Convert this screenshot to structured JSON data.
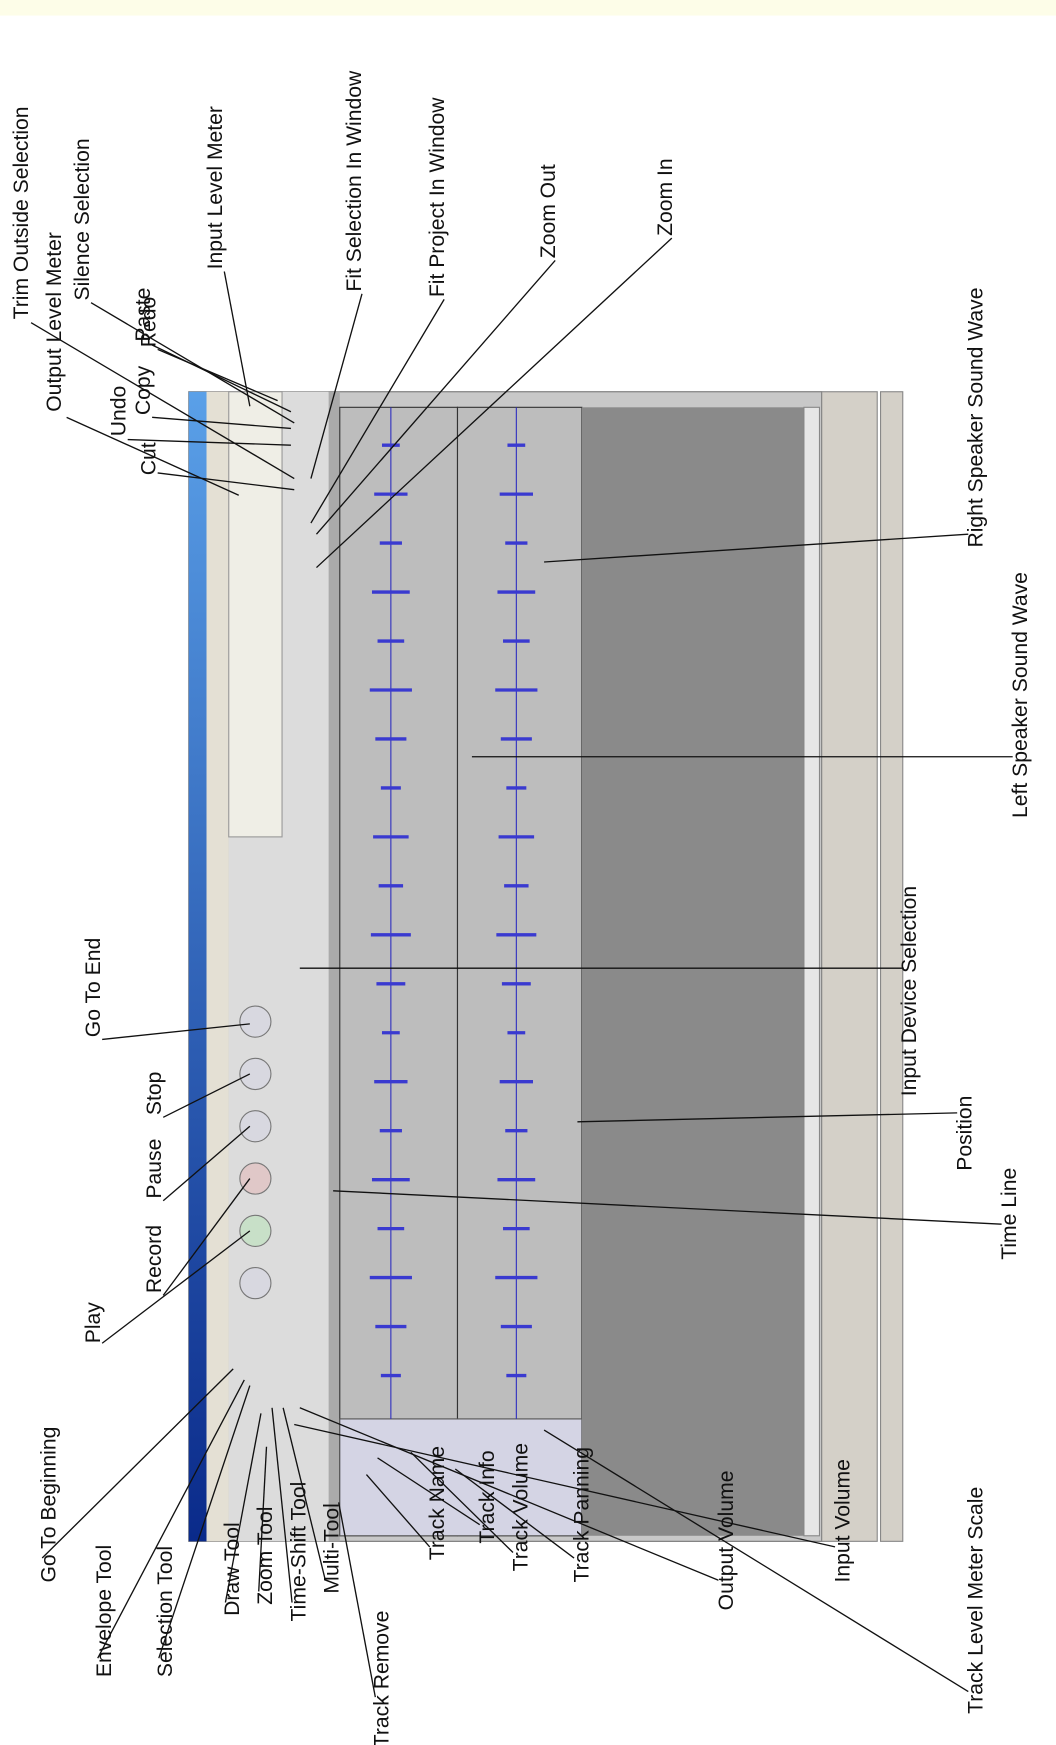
{
  "labels": [
    "Output Level Meter",
    "Cut",
    "Copy",
    "Paste",
    "Trim Outside Selection",
    "Silence Selection",
    "Undo",
    "Redo",
    "Input Level Meter",
    "Fit Selection In Window",
    "Fit Project In Window",
    "Zoom Out",
    "Zoom In",
    "Go To End",
    "Stop",
    "Pause",
    "Record",
    "Play",
    "Input Device Selection",
    "Left Speaker Sound Wave",
    "Right Speaker Sound Wave",
    "Position",
    "Time Line",
    "Track Level Meter Scale",
    "Input Volume",
    "Output Volume",
    "Track Panning",
    "Track Volume",
    "Track Info",
    "Track Name",
    "Track Remove",
    "Multi-Tool",
    "Time-Shift Tool",
    "Zoom Tool",
    "Draw Tool",
    "Selection Tool",
    "Envelope Tool",
    "Go To Beginning"
  ]
}
